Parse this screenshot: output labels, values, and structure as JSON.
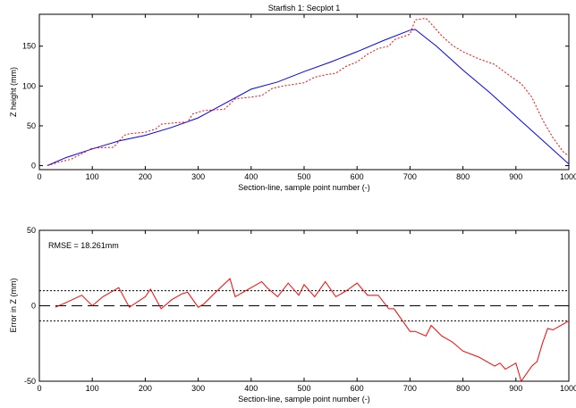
{
  "chart_data": [
    {
      "type": "line",
      "title": "Starfish 1: Secplot 1",
      "xlabel": "Section-line, sample point number (-)",
      "ylabel": "Z height (mm)",
      "xlim": [
        0,
        1000
      ],
      "ylim": [
        -5,
        190
      ],
      "xticks": [
        0,
        100,
        200,
        300,
        400,
        500,
        600,
        700,
        800,
        900,
        1000
      ],
      "yticks": [
        0,
        50,
        100,
        150
      ],
      "grid": false,
      "series": [
        {
          "color": "#0000ff",
          "style": "solid",
          "x": [
            15,
            50,
            100,
            150,
            200,
            250,
            300,
            350,
            400,
            450,
            500,
            550,
            600,
            650,
            700,
            710,
            750,
            800,
            850,
            900,
            950,
            1000
          ],
          "y": [
            0,
            10,
            21,
            31,
            38,
            48,
            60,
            78,
            96,
            105,
            118,
            130,
            143,
            157,
            170,
            171,
            150,
            120,
            92,
            62,
            32,
            2
          ]
        },
        {
          "color": "#ff0000",
          "style": "dotted",
          "x": [
            15,
            40,
            60,
            80,
            100,
            140,
            160,
            170,
            200,
            220,
            230,
            260,
            280,
            290,
            310,
            350,
            370,
            400,
            420,
            440,
            460,
            480,
            500,
            520,
            540,
            560,
            580,
            600,
            620,
            640,
            660,
            670,
            700,
            710,
            730,
            740,
            760,
            780,
            800,
            830,
            860,
            890,
            910,
            930,
            950,
            970,
            990,
            1000
          ],
          "y": [
            0,
            5,
            8,
            15,
            22,
            23,
            38,
            40,
            42,
            46,
            52,
            54,
            55,
            65,
            69,
            71,
            84,
            86,
            88,
            97,
            100,
            102,
            104,
            111,
            114,
            116,
            125,
            130,
            140,
            147,
            150,
            158,
            165,
            183,
            185,
            178,
            163,
            151,
            143,
            134,
            127,
            112,
            103,
            86,
            58,
            35,
            17,
            12
          ]
        }
      ]
    },
    {
      "type": "line",
      "xlabel": "Section-line, sample point number (-)",
      "ylabel": "Error in Z (mm)",
      "xlim": [
        0,
        1000
      ],
      "ylim": [
        -50,
        50
      ],
      "xticks": [
        0,
        100,
        200,
        300,
        400,
        500,
        600,
        700,
        800,
        900,
        1000
      ],
      "yticks": [
        -50,
        0,
        50
      ],
      "grid": false,
      "annotation": "RMSE = 18.261mm",
      "reference_lines": [
        {
          "y": 10,
          "style": "dotted",
          "color": "#000000"
        },
        {
          "y": 0,
          "style": "dashed",
          "color": "#000000"
        },
        {
          "y": -10,
          "style": "dotted",
          "color": "#000000"
        }
      ],
      "series": [
        {
          "color": "#ff0000",
          "style": "solid",
          "x": [
            30,
            50,
            80,
            100,
            120,
            150,
            170,
            200,
            210,
            230,
            250,
            270,
            280,
            300,
            310,
            330,
            360,
            370,
            390,
            420,
            430,
            450,
            470,
            490,
            500,
            520,
            540,
            560,
            580,
            600,
            620,
            640,
            660,
            670,
            690,
            700,
            710,
            730,
            740,
            760,
            780,
            800,
            830,
            860,
            870,
            880,
            900,
            910,
            930,
            940,
            950,
            960,
            970,
            990,
            1000
          ],
          "y": [
            -1,
            2,
            7,
            0,
            6,
            12,
            -1,
            6,
            11,
            -2,
            4,
            8,
            9,
            -1,
            1,
            8,
            18,
            6,
            10,
            16,
            12,
            6,
            15,
            7,
            14,
            6,
            16,
            6,
            10,
            15,
            7,
            7,
            -2,
            -2,
            -12,
            -17,
            -17,
            -20,
            -13,
            -20,
            -24,
            -30,
            -34,
            -40,
            -38,
            -42,
            -38,
            -50,
            -40,
            -37,
            -25,
            -15,
            -16,
            -12,
            -10
          ]
        }
      ]
    }
  ]
}
